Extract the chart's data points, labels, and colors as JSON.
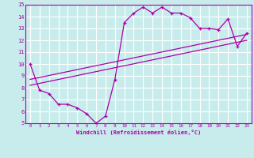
{
  "bg_color": "#c8ecec",
  "grid_color": "#ffffff",
  "line_color": "#aa00aa",
  "xlabel": "Windchill (Refroidissement éolien,°C)",
  "xlim": [
    -0.5,
    23.5
  ],
  "ylim": [
    5,
    15
  ],
  "xticks": [
    0,
    1,
    2,
    3,
    4,
    5,
    6,
    7,
    8,
    9,
    10,
    11,
    12,
    13,
    14,
    15,
    16,
    17,
    18,
    19,
    20,
    21,
    22,
    23
  ],
  "yticks": [
    5,
    6,
    7,
    8,
    9,
    10,
    11,
    12,
    13,
    14,
    15
  ],
  "curve1_x": [
    0,
    1,
    2,
    3,
    4,
    5,
    6,
    7,
    8,
    9,
    10,
    11,
    12,
    13,
    14,
    15,
    16,
    17,
    18,
    19,
    20,
    21,
    22,
    23
  ],
  "curve1_y": [
    10,
    7.8,
    7.5,
    6.6,
    6.6,
    6.3,
    5.8,
    5.0,
    5.6,
    8.7,
    13.5,
    14.3,
    14.8,
    14.3,
    14.8,
    14.3,
    14.3,
    13.9,
    13.0,
    13.0,
    12.9,
    13.8,
    11.5,
    12.6
  ],
  "curve2_x": [
    0,
    23
  ],
  "curve2_y": [
    8.2,
    12.0
  ],
  "curve3_x": [
    0,
    23
  ],
  "curve3_y": [
    8.7,
    12.5
  ]
}
